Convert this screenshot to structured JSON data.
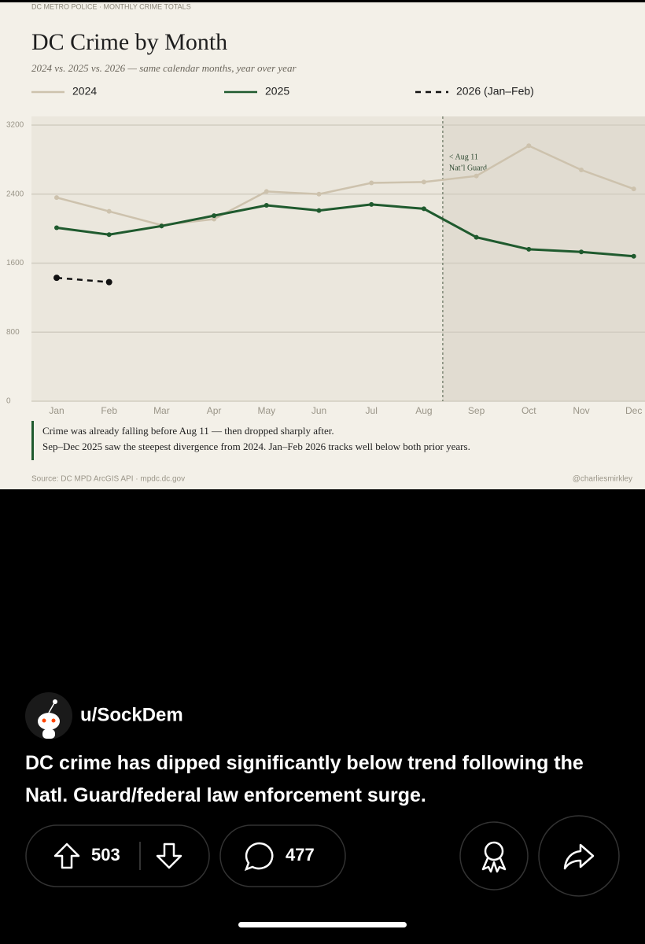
{
  "chart_data": {
    "type": "line",
    "header": "DC METRO POLICE · MONTHLY CRIME TOTALS",
    "title": "DC Crime by Month",
    "subtitle": "2024 vs. 2025 vs. 2026 — same calendar months, year over year",
    "categories": [
      "Jan",
      "Feb",
      "Mar",
      "Apr",
      "May",
      "Jun",
      "Jul",
      "Aug",
      "Sep",
      "Oct",
      "Nov",
      "Dec"
    ],
    "series": [
      {
        "name": "2024",
        "color": "#cdc2ad",
        "style": "solid",
        "values": [
          2360,
          2200,
          2040,
          2110,
          2430,
          2400,
          2530,
          2540,
          2610,
          2960,
          2680,
          2460
        ]
      },
      {
        "name": "2025",
        "color": "#1f5a2e",
        "style": "solid",
        "values": [
          2010,
          1930,
          2030,
          2150,
          2270,
          2210,
          2280,
          2230,
          1900,
          1760,
          1730,
          1680
        ]
      },
      {
        "name": "2026 (Jan–Feb)",
        "color": "#111111",
        "style": "dashed",
        "values": [
          1430,
          1380,
          null,
          null,
          null,
          null,
          null,
          null,
          null,
          null,
          null,
          null
        ]
      }
    ],
    "ylim": [
      0,
      3300
    ],
    "yticks": [
      0,
      800,
      1600,
      2400,
      3200
    ],
    "grid": true,
    "annotation": [
      "< Aug 11",
      "Nat’l Guard"
    ],
    "notes": [
      "Crime was already falling before Aug 11 — then dropped sharply after.",
      "Sep–Dec 2025 saw the steepest divergence from 2024. Jan–Feb 2026 tracks well below both prior years."
    ],
    "source": "Source: DC MPD ArcGIS API · mpdc.dc.gov",
    "credit": "@charliesmirkley"
  },
  "post": {
    "user": "u/SockDem",
    "title": "DC crime has dipped significantly below trend following the Natl. Guard/federal law enforcement surge.",
    "votes": 503,
    "comments": 477
  }
}
